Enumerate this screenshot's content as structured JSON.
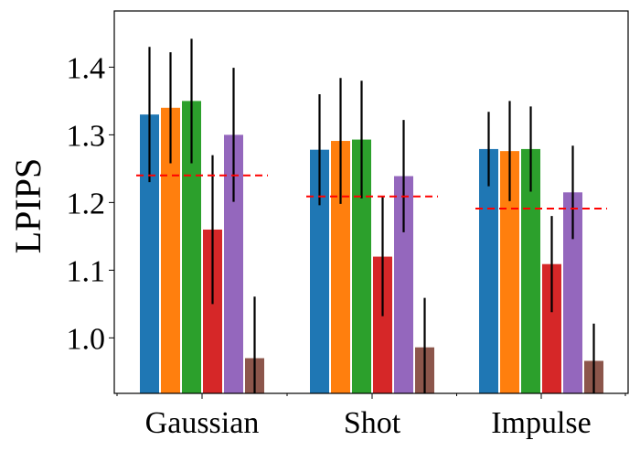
{
  "chart_data": {
    "type": "bar",
    "title": "",
    "xlabel": "",
    "ylabel": "LPIPS",
    "ylim": [
      0.918,
      1.483
    ],
    "yticks": [
      "1.0",
      "1.1",
      "1.2",
      "1.3",
      "1.4"
    ],
    "yticks_values": [
      1.0,
      1.1,
      1.2,
      1.3,
      1.4
    ],
    "categories": [
      "Gaussian",
      "Shot",
      "Impulse"
    ],
    "series_colors": [
      "#1f77b4",
      "#ff7f0e",
      "#2ca02c",
      "#d62728",
      "#9467bd",
      "#8c564b"
    ],
    "series": [
      {
        "values": [
          1.33,
          1.278,
          1.279
        ],
        "errors": [
          0.1,
          0.082,
          0.055
        ]
      },
      {
        "values": [
          1.34,
          1.291,
          1.276
        ],
        "errors": [
          0.082,
          0.093,
          0.074
        ]
      },
      {
        "values": [
          1.35,
          1.293,
          1.279
        ],
        "errors": [
          0.092,
          0.087,
          0.063
        ]
      },
      {
        "values": [
          1.16,
          1.12,
          1.109
        ],
        "errors": [
          0.11,
          0.088,
          0.071
        ]
      },
      {
        "values": [
          1.3,
          1.239,
          1.215
        ],
        "errors": [
          0.099,
          0.083,
          0.069
        ]
      },
      {
        "values": [
          0.97,
          0.986,
          0.966
        ],
        "errors": [
          0.091,
          0.073,
          0.055
        ]
      }
    ],
    "reference_lines": [
      {
        "category": "Gaussian",
        "value": 1.24,
        "color": "#ff0000",
        "style": "dashed"
      },
      {
        "category": "Shot",
        "value": 1.209,
        "color": "#ff0000",
        "style": "dashed"
      },
      {
        "category": "Impulse",
        "value": 1.191,
        "color": "#ff0000",
        "style": "dashed"
      }
    ]
  }
}
